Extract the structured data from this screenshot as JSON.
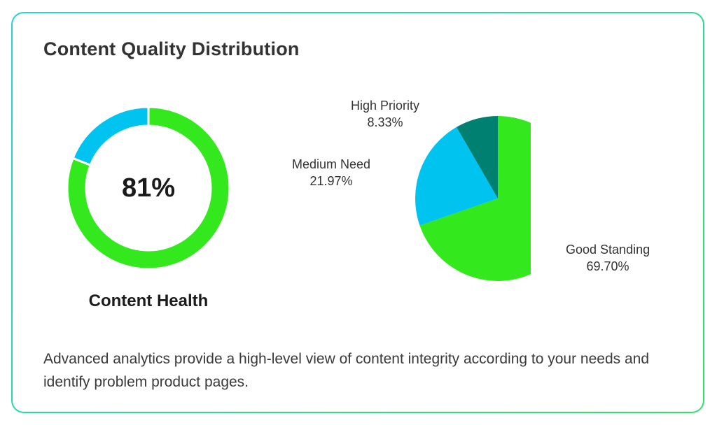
{
  "title": "Content Quality Distribution",
  "description": "Advanced analytics provide a high-level view of content integrity according to your needs and identify problem product pages.",
  "colors": {
    "good": "#33e81c",
    "medium": "#00c4ef",
    "high": "#008071",
    "border": "#2fd89a"
  },
  "chart_data": [
    {
      "type": "pie",
      "variant": "donut",
      "center_label": "81%",
      "caption": "Content Health",
      "slices": [
        {
          "value": 81,
          "color": "#33e81c"
        },
        {
          "value": 19,
          "color": "#00c4ef"
        }
      ]
    },
    {
      "type": "pie",
      "slices": [
        {
          "label": "Good Standing",
          "percent_label": "69.70%",
          "value": 69.7,
          "color": "#33e81c"
        },
        {
          "label": "Medium Need",
          "percent_label": "21.97%",
          "value": 21.97,
          "color": "#00c4ef"
        },
        {
          "label": "High Priority",
          "percent_label": "8.33%",
          "value": 8.33,
          "color": "#008071"
        }
      ]
    }
  ]
}
